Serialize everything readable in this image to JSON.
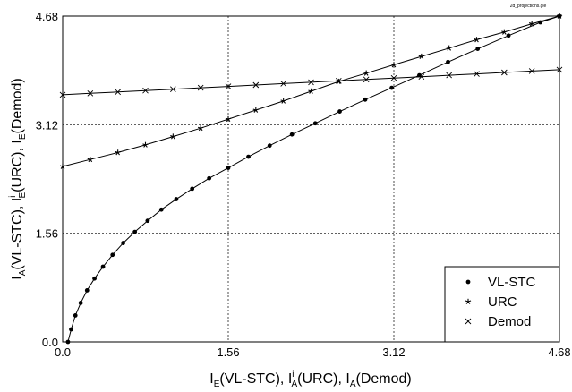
{
  "chart_data": {
    "type": "line",
    "corner_note": "2d_projections.gle",
    "xlabel": {
      "main": "I",
      "parts": [
        {
          "text": "I",
          "sub": "E",
          "rest": "(VL-STC), "
        },
        {
          "text": "I",
          "sub": "A",
          "sup": "i",
          "rest": "(URC), "
        },
        {
          "text": "I",
          "sub": "A",
          "rest": "(Demod)"
        }
      ]
    },
    "ylabel": {
      "parts": [
        {
          "text": "I",
          "sub": "A",
          "rest": "(VL-STC), "
        },
        {
          "text": "I",
          "sub": "E",
          "sup": "i",
          "rest": "(URC), "
        },
        {
          "text": "I",
          "sub": "E",
          "rest": "(Demod)"
        }
      ]
    },
    "xlim": [
      0,
      4.68
    ],
    "ylim": [
      0,
      4.68
    ],
    "xticks": [
      "0.0",
      "1.56",
      "3.12",
      "4.68"
    ],
    "yticks": [
      "0.0",
      "1.56",
      "3.12",
      "4.68"
    ],
    "grid": true,
    "legend_position": "bottom-right",
    "series": [
      {
        "name": "VL-STC",
        "marker": "dot",
        "x": [
          0.05,
          0.08,
          0.12,
          0.17,
          0.23,
          0.3,
          0.38,
          0.47,
          0.57,
          0.68,
          0.8,
          0.93,
          1.07,
          1.22,
          1.38,
          1.56,
          1.75,
          1.95,
          2.16,
          2.38,
          2.61,
          2.85,
          3.1,
          3.36,
          3.63,
          3.91,
          4.2,
          4.5,
          4.68
        ],
        "y": [
          0.0,
          0.18,
          0.38,
          0.56,
          0.74,
          0.91,
          1.08,
          1.25,
          1.42,
          1.58,
          1.74,
          1.9,
          2.05,
          2.2,
          2.35,
          2.5,
          2.66,
          2.82,
          2.98,
          3.14,
          3.31,
          3.48,
          3.65,
          3.83,
          4.02,
          4.21,
          4.4,
          4.59,
          4.68
        ]
      },
      {
        "name": "URC",
        "marker": "star",
        "x": [
          0.0,
          0.26,
          0.52,
          0.78,
          1.04,
          1.3,
          1.56,
          1.82,
          2.08,
          2.34,
          2.6,
          2.86,
          3.12,
          3.38,
          3.64,
          3.9,
          4.16,
          4.42,
          4.68
        ],
        "y": [
          2.52,
          2.62,
          2.72,
          2.83,
          2.95,
          3.07,
          3.2,
          3.33,
          3.46,
          3.6,
          3.74,
          3.86,
          3.98,
          4.1,
          4.22,
          4.34,
          4.45,
          4.57,
          4.68
        ]
      },
      {
        "name": "Demod",
        "marker": "x",
        "x": [
          0.0,
          0.26,
          0.52,
          0.78,
          1.04,
          1.3,
          1.56,
          1.82,
          2.08,
          2.34,
          2.6,
          2.86,
          3.12,
          3.38,
          3.64,
          3.9,
          4.16,
          4.42,
          4.68
        ],
        "y": [
          3.55,
          3.57,
          3.59,
          3.61,
          3.63,
          3.65,
          3.67,
          3.69,
          3.71,
          3.73,
          3.75,
          3.77,
          3.79,
          3.81,
          3.83,
          3.85,
          3.87,
          3.89,
          3.91
        ]
      }
    ]
  }
}
